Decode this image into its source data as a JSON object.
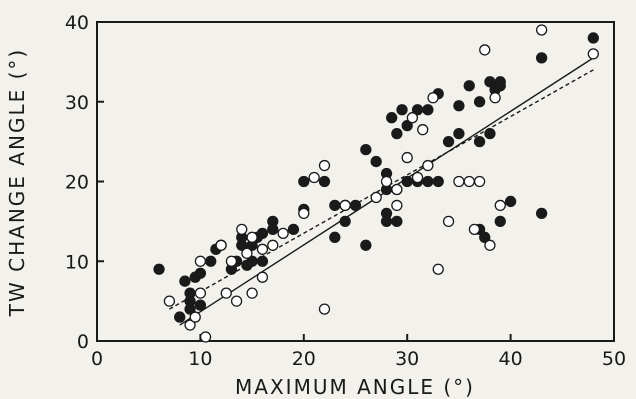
{
  "chart_data": {
    "type": "scatter",
    "xlabel": "MAXIMUM ANGLE (°)",
    "ylabel": "TW CHANGE ANGLE (°)",
    "xlim": [
      0,
      50
    ],
    "ylim": [
      0,
      40
    ],
    "xticks": [
      "0",
      "10",
      "20",
      "30",
      "40",
      "50"
    ],
    "yticks": [
      "0",
      "10",
      "20",
      "30",
      "40"
    ],
    "grid": false,
    "series": [
      {
        "marker": "filled-circle",
        "color": "#1a1a1a",
        "points": [
          [
            6,
            9
          ],
          [
            8,
            3
          ],
          [
            8.5,
            7.5
          ],
          [
            9,
            6
          ],
          [
            9,
            5
          ],
          [
            9,
            4
          ],
          [
            10,
            4.5
          ],
          [
            9.5,
            8
          ],
          [
            10,
            8.5
          ],
          [
            11,
            10
          ],
          [
            11.5,
            11.5
          ],
          [
            12,
            12
          ],
          [
            13,
            9
          ],
          [
            13.5,
            10
          ],
          [
            14,
            12
          ],
          [
            14,
            13
          ],
          [
            14.5,
            9.5
          ],
          [
            15,
            10
          ],
          [
            15,
            12
          ],
          [
            15.5,
            13
          ],
          [
            16,
            10
          ],
          [
            16,
            13.5
          ],
          [
            17,
            14
          ],
          [
            17,
            15
          ],
          [
            19,
            14
          ],
          [
            20,
            16.5
          ],
          [
            20,
            20
          ],
          [
            22,
            20
          ],
          [
            23,
            17
          ],
          [
            23,
            13
          ],
          [
            24,
            15
          ],
          [
            24,
            17
          ],
          [
            25,
            17
          ],
          [
            26,
            12
          ],
          [
            26,
            24
          ],
          [
            27,
            22.5
          ],
          [
            28,
            15
          ],
          [
            28,
            16
          ],
          [
            28,
            19
          ],
          [
            28,
            21
          ],
          [
            28.5,
            28
          ],
          [
            29,
            15
          ],
          [
            29,
            19
          ],
          [
            29,
            26
          ],
          [
            29.5,
            29
          ],
          [
            30,
            27
          ],
          [
            30,
            20
          ],
          [
            31,
            29
          ],
          [
            31,
            20
          ],
          [
            32,
            20
          ],
          [
            32,
            29
          ],
          [
            33,
            31
          ],
          [
            33,
            20
          ],
          [
            34,
            25
          ],
          [
            35,
            26
          ],
          [
            35,
            29.5
          ],
          [
            36,
            32
          ],
          [
            37,
            30
          ],
          [
            37,
            25
          ],
          [
            37,
            14
          ],
          [
            37.5,
            13
          ],
          [
            38,
            32.5
          ],
          [
            38,
            26
          ],
          [
            38.5,
            31.5
          ],
          [
            39,
            32.5
          ],
          [
            39,
            32
          ],
          [
            39,
            15
          ],
          [
            40,
            17.5
          ],
          [
            43,
            16
          ],
          [
            43,
            35.5
          ],
          [
            48,
            38
          ]
        ]
      },
      {
        "marker": "open-circle",
        "color": "#1a1a1a",
        "points": [
          [
            7,
            5
          ],
          [
            9,
            2
          ],
          [
            9.5,
            3
          ],
          [
            10,
            6
          ],
          [
            10,
            10
          ],
          [
            10.5,
            0.5
          ],
          [
            12,
            12
          ],
          [
            12.5,
            6
          ],
          [
            13,
            10
          ],
          [
            13.5,
            5
          ],
          [
            14,
            14
          ],
          [
            14.5,
            11
          ],
          [
            15,
            6
          ],
          [
            15,
            13
          ],
          [
            16,
            8
          ],
          [
            16,
            11.5
          ],
          [
            17,
            12
          ],
          [
            18,
            13.5
          ],
          [
            20,
            16
          ],
          [
            21,
            20.5
          ],
          [
            22,
            22
          ],
          [
            22,
            4
          ],
          [
            24,
            17
          ],
          [
            27,
            18
          ],
          [
            28,
            20
          ],
          [
            29,
            17
          ],
          [
            29,
            19
          ],
          [
            30,
            23
          ],
          [
            30.5,
            28
          ],
          [
            31,
            20.5
          ],
          [
            31.5,
            26.5
          ],
          [
            32,
            22
          ],
          [
            32.5,
            30.5
          ],
          [
            33,
            9
          ],
          [
            34,
            15
          ],
          [
            35,
            20
          ],
          [
            36,
            20
          ],
          [
            36.5,
            14
          ],
          [
            37,
            20
          ],
          [
            37.5,
            36.5
          ],
          [
            38,
            12
          ],
          [
            38.5,
            30.5
          ],
          [
            39,
            17
          ],
          [
            43,
            39
          ],
          [
            48,
            36
          ]
        ]
      }
    ],
    "fit_lines": [
      {
        "style": "solid",
        "x": [
          8,
          48
        ],
        "y": [
          2,
          35.5
        ]
      },
      {
        "style": "dashed",
        "x": [
          7,
          48
        ],
        "y": [
          4,
          34
        ]
      }
    ]
  }
}
